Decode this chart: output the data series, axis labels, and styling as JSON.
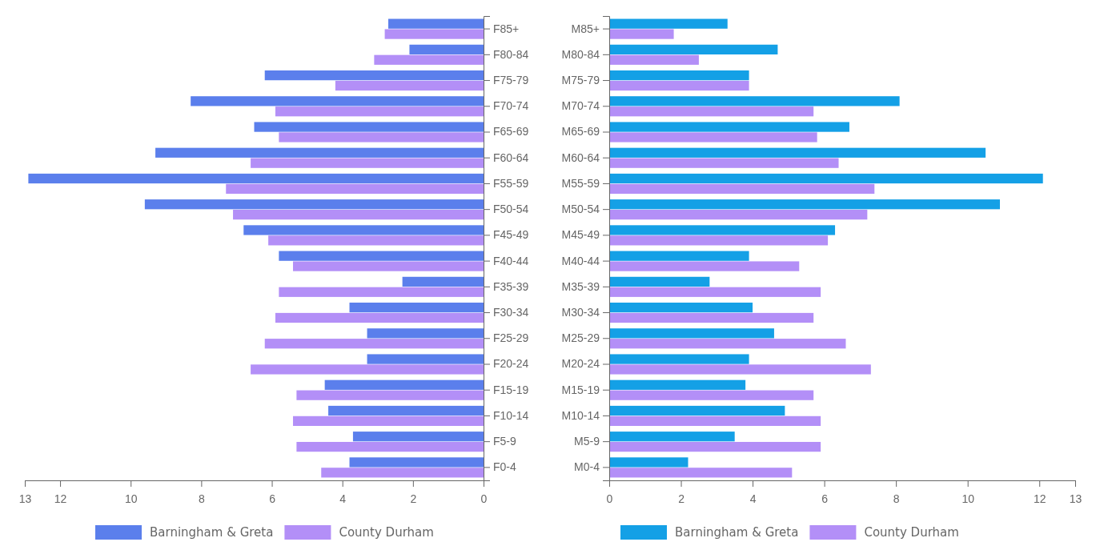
{
  "chart_data": [
    {
      "type": "bar",
      "orientation": "horizontal",
      "categories": [
        "F85+",
        "F80-84",
        "F75-79",
        "F70-74",
        "F65-69",
        "F60-64",
        "F55-59",
        "F50-54",
        "F45-49",
        "F40-44",
        "F35-39",
        "F30-34",
        "F25-29",
        "F20-24",
        "F15-19",
        "F10-14",
        "F5-9",
        "F0-4"
      ],
      "series": [
        {
          "name": "Barningham & Greta",
          "color": "#5b7fec",
          "values": [
            2.7,
            2.1,
            6.2,
            8.3,
            6.5,
            9.3,
            12.9,
            9.6,
            6.8,
            5.8,
            2.3,
            3.8,
            3.3,
            3.3,
            4.5,
            4.4,
            3.7,
            3.8
          ]
        },
        {
          "name": "County Durham",
          "color": "#b38ff7",
          "values": [
            2.8,
            3.1,
            4.2,
            5.9,
            5.8,
            6.6,
            7.3,
            7.1,
            6.1,
            5.4,
            5.8,
            5.9,
            6.2,
            6.6,
            5.3,
            5.4,
            5.3,
            4.6
          ]
        }
      ],
      "xlim": [
        13,
        0
      ],
      "xticks": [
        13,
        12,
        10,
        8,
        6,
        4,
        2,
        0
      ],
      "legend": "bottom"
    },
    {
      "type": "bar",
      "orientation": "horizontal",
      "categories": [
        "M85+",
        "M80-84",
        "M75-79",
        "M70-74",
        "M65-69",
        "M60-64",
        "M55-59",
        "M50-54",
        "M45-49",
        "M40-44",
        "M35-39",
        "M30-34",
        "M25-29",
        "M20-24",
        "M15-19",
        "M10-14",
        "M5-9",
        "M0-4"
      ],
      "series": [
        {
          "name": "Barningham & Greta",
          "color": "#14a0e6",
          "values": [
            3.3,
            4.7,
            3.9,
            8.1,
            6.7,
            10.5,
            12.1,
            10.9,
            6.3,
            3.9,
            2.8,
            4.0,
            4.6,
            3.9,
            3.8,
            4.9,
            3.5,
            2.2
          ]
        },
        {
          "name": "County Durham",
          "color": "#b38ff7",
          "values": [
            1.8,
            2.5,
            3.9,
            5.7,
            5.8,
            6.4,
            7.4,
            7.2,
            6.1,
            5.3,
            5.9,
            5.7,
            6.6,
            7.3,
            5.7,
            5.9,
            5.9,
            5.1
          ]
        }
      ],
      "xlim": [
        0,
        13
      ],
      "xticks": [
        0,
        2,
        4,
        6,
        8,
        10,
        12,
        13
      ],
      "legend": "bottom"
    }
  ]
}
